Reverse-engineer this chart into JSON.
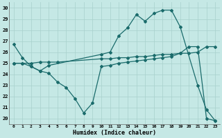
{
  "xlabel": "Humidex (Indice chaleur)",
  "xlim": [
    -0.5,
    23.5
  ],
  "ylim": [
    19.5,
    30.5
  ],
  "xticks": [
    0,
    1,
    2,
    3,
    4,
    5,
    6,
    7,
    8,
    9,
    10,
    11,
    12,
    13,
    14,
    15,
    16,
    17,
    18,
    19,
    20,
    21,
    22,
    23
  ],
  "yticks": [
    20,
    21,
    22,
    23,
    24,
    25,
    26,
    27,
    28,
    29,
    30
  ],
  "bg_color": "#c5e8e5",
  "line_color": "#1a6b6b",
  "grid_color": "#a8d0cc",
  "line1_x": [
    0,
    1,
    2,
    3,
    4,
    10,
    11,
    12,
    13,
    14,
    15,
    16,
    17,
    18,
    19,
    21,
    22,
    23
  ],
  "line1_y": [
    26.7,
    25.5,
    24.7,
    24.3,
    24.8,
    25.8,
    26.0,
    27.5,
    28.2,
    29.4,
    28.8,
    29.5,
    29.8,
    29.8,
    28.3,
    23.0,
    20.8,
    19.8
  ],
  "line2_x": [
    0,
    1,
    2,
    3,
    4,
    5,
    10,
    11,
    12,
    13,
    14,
    15,
    16,
    17,
    18,
    19,
    20,
    21,
    22,
    23
  ],
  "line2_y": [
    25.0,
    25.0,
    25.0,
    25.1,
    25.1,
    25.1,
    25.4,
    25.4,
    25.5,
    25.5,
    25.6,
    25.6,
    25.7,
    25.8,
    25.8,
    25.9,
    25.9,
    26.0,
    26.5,
    26.5
  ],
  "line3_x": [
    0,
    1,
    2,
    3,
    4,
    5,
    6,
    7,
    8,
    9,
    10,
    11,
    12,
    13,
    14,
    15,
    16,
    17,
    18,
    19,
    20,
    21,
    22,
    23
  ],
  "line3_y": [
    25.0,
    25.0,
    24.7,
    24.3,
    24.1,
    23.3,
    22.8,
    21.8,
    20.5,
    21.4,
    24.7,
    24.8,
    25.0,
    25.1,
    25.2,
    25.3,
    25.4,
    25.5,
    25.6,
    25.9,
    26.5,
    26.5,
    20.0,
    19.8
  ]
}
